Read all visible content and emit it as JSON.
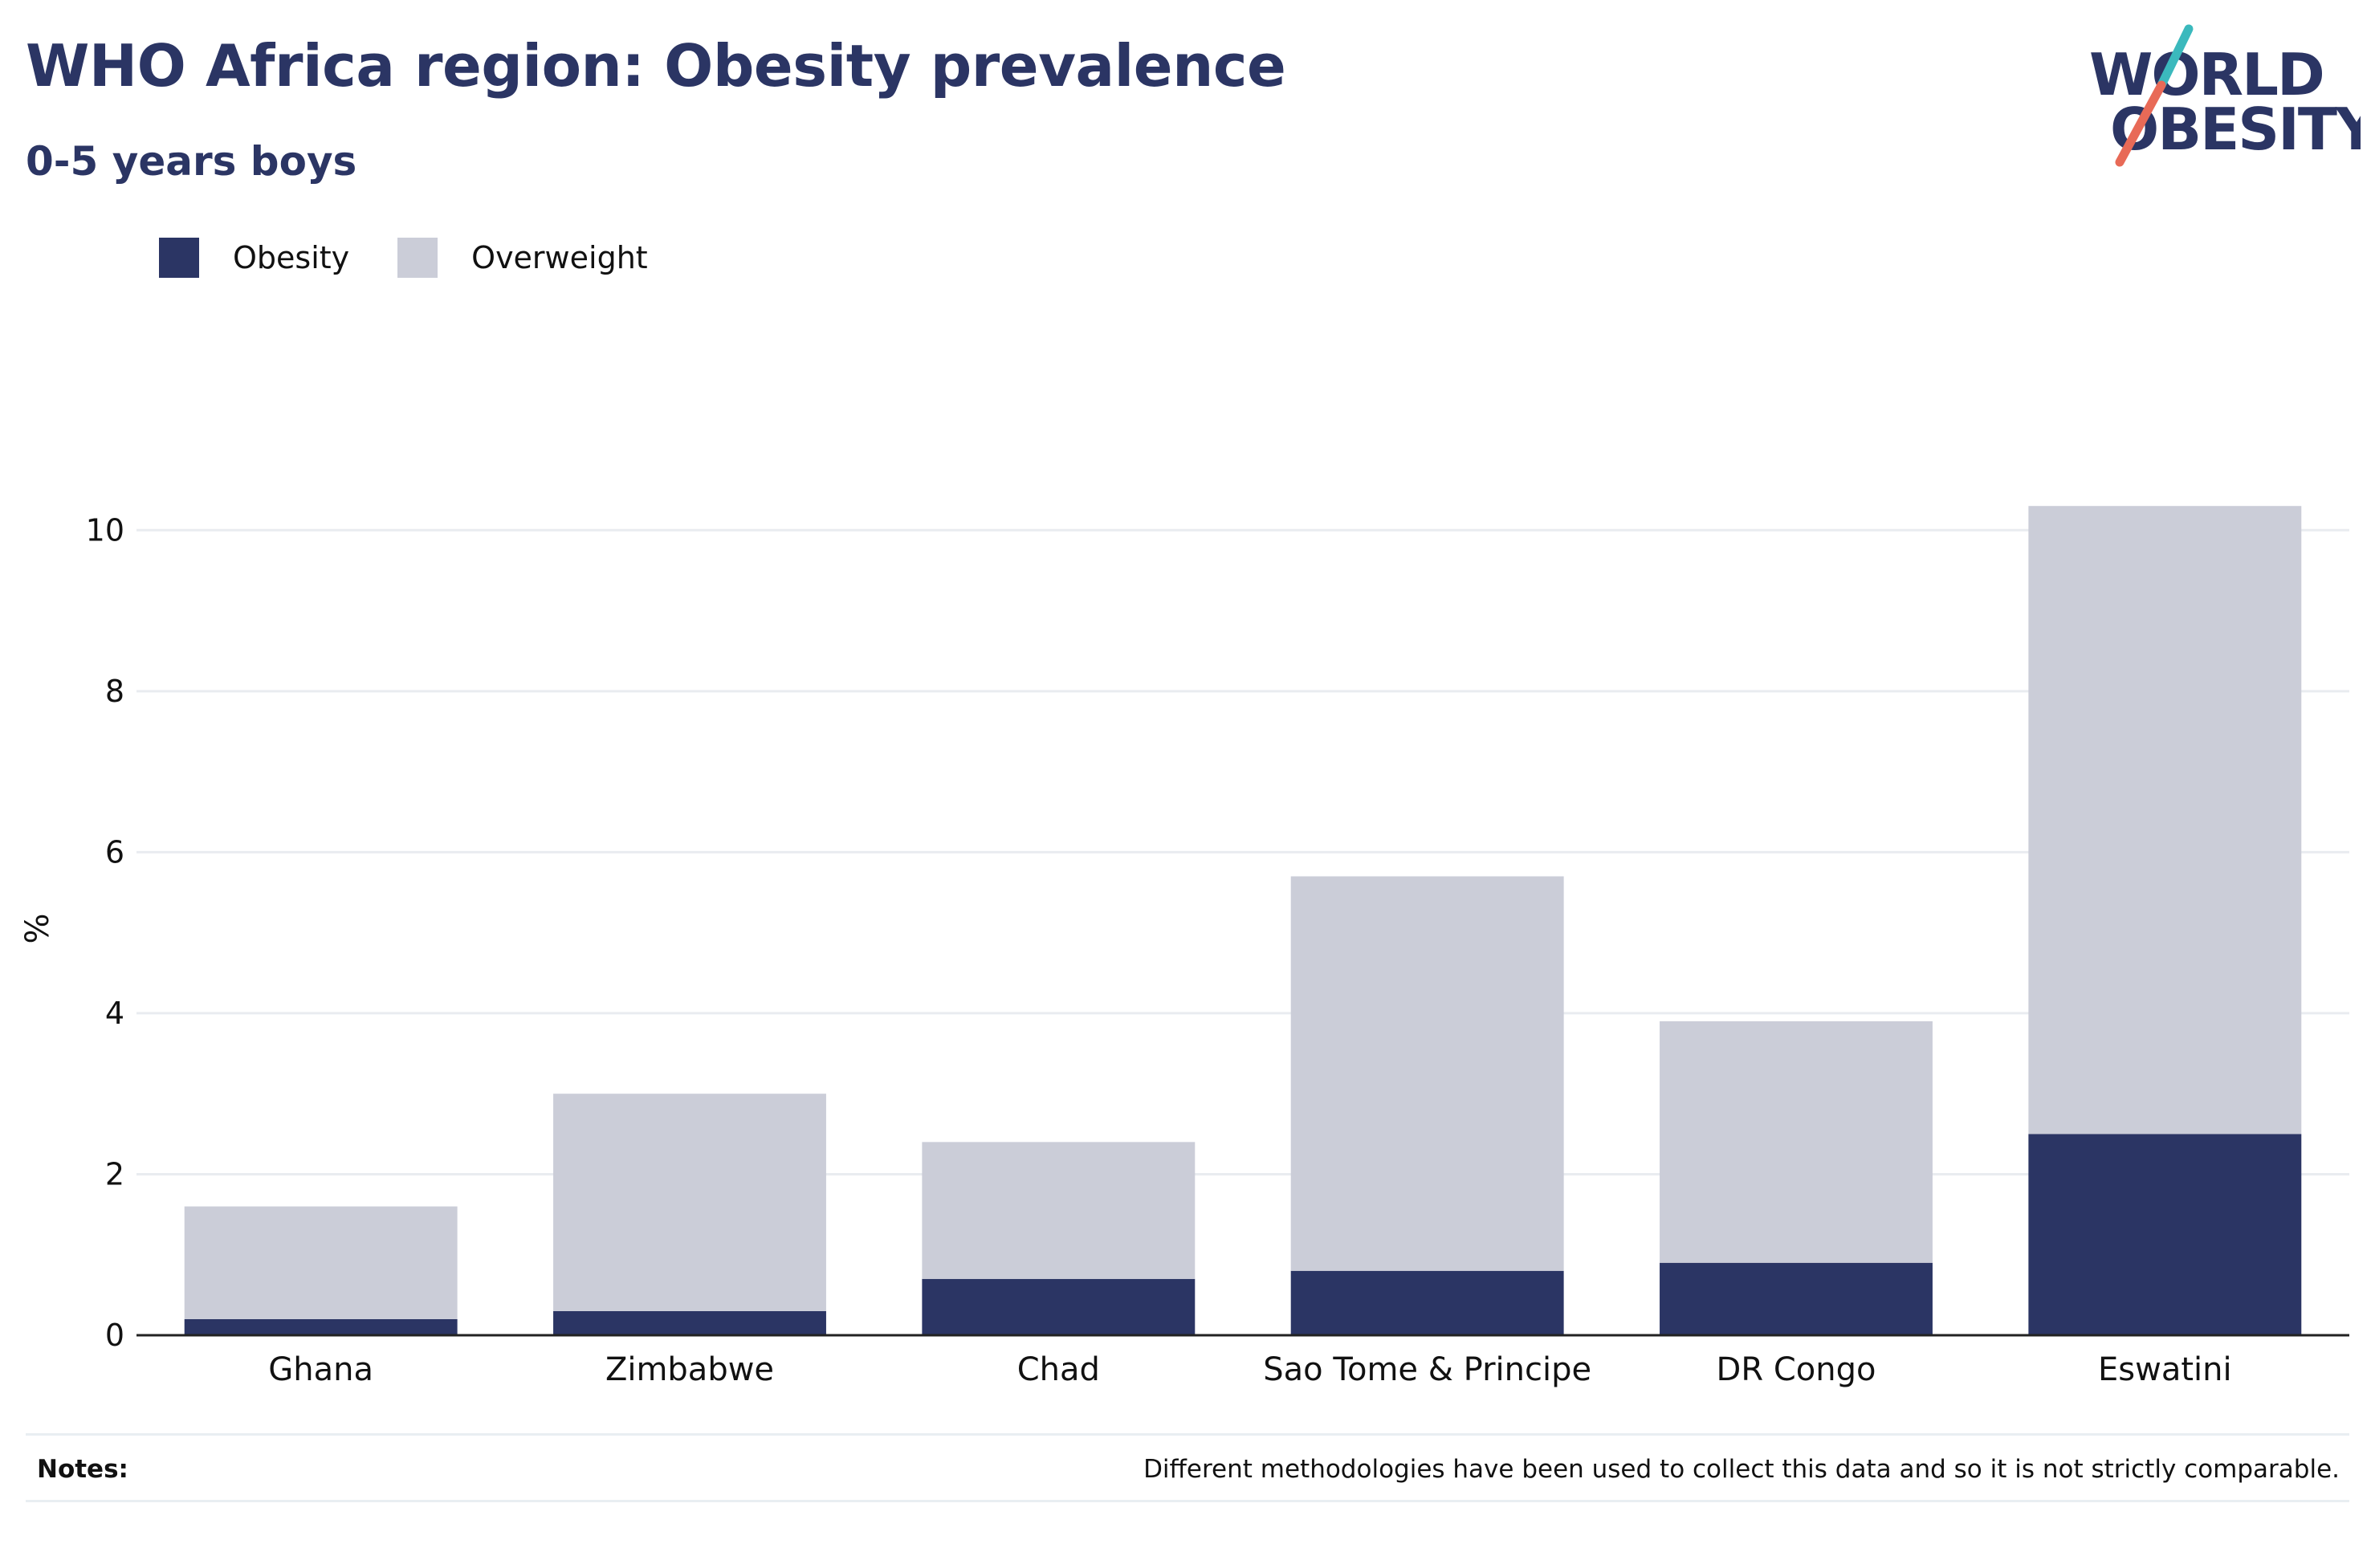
{
  "title": "WHO Africa region: Obesity prevalence",
  "subtitle": "0-5 years boys",
  "logo": {
    "line1": "WORLD",
    "line2": "OBESITY"
  },
  "legend": [
    {
      "label": "Obesity",
      "color": "#2b3564"
    },
    {
      "label": "Overweight",
      "color": "#cbcdd8"
    }
  ],
  "notes": {
    "label": "Notes:",
    "text": "Different methodologies have been used to collect this data and so it is not strictly comparable."
  },
  "chart_data": {
    "type": "bar",
    "stacked": true,
    "title": "WHO Africa region: Obesity prevalence",
    "subtitle": "0-5 years boys",
    "ylabel": "%",
    "xlabel": "",
    "ylim": [
      0,
      11
    ],
    "yticks": [
      0,
      2,
      4,
      6,
      8,
      10
    ],
    "grid": true,
    "legend_position": "top-left",
    "categories": [
      "Ghana",
      "Zimbabwe",
      "Chad",
      "Sao Tome & Principe",
      "DR Congo",
      "Eswatini"
    ],
    "series": [
      {
        "name": "Obesity",
        "color": "#2b3564",
        "values": [
          0.2,
          0.3,
          0.7,
          0.8,
          0.9,
          2.5
        ]
      },
      {
        "name": "Overweight",
        "color": "#cbcdd8",
        "values": [
          1.4,
          2.7,
          1.7,
          4.9,
          3.0,
          7.8
        ]
      }
    ]
  }
}
